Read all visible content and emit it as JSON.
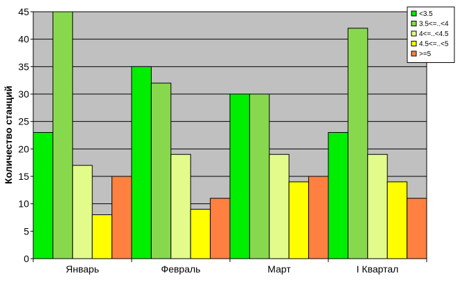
{
  "chart_data": {
    "type": "bar",
    "title": "",
    "xlabel": "",
    "ylabel": "Количество станций",
    "ylim": [
      0,
      45
    ],
    "yticks": [
      0,
      5,
      10,
      15,
      20,
      25,
      30,
      35,
      40,
      45
    ],
    "grid": true,
    "legend_position": "top-right",
    "categories": [
      "Январь",
      "Февраль",
      "Март",
      "I Квартал"
    ],
    "series": [
      {
        "name": "<3.5",
        "color": "#00ee00",
        "values": [
          23,
          35,
          30,
          23
        ]
      },
      {
        "name": "3.5<=..<4",
        "color": "#88d84e",
        "values": [
          45,
          32,
          30,
          42
        ]
      },
      {
        "name": "4<=..<4.5",
        "color": "#e2fb8a",
        "values": [
          17,
          19,
          19,
          19
        ]
      },
      {
        "name": "4.5<=..<5",
        "color": "#ffff00",
        "values": [
          8,
          9,
          14,
          14
        ]
      },
      {
        "name": ">=5",
        "color": "#ff8040",
        "values": [
          15,
          11,
          15,
          11
        ]
      }
    ],
    "plot_background": "#c0c0c0"
  }
}
